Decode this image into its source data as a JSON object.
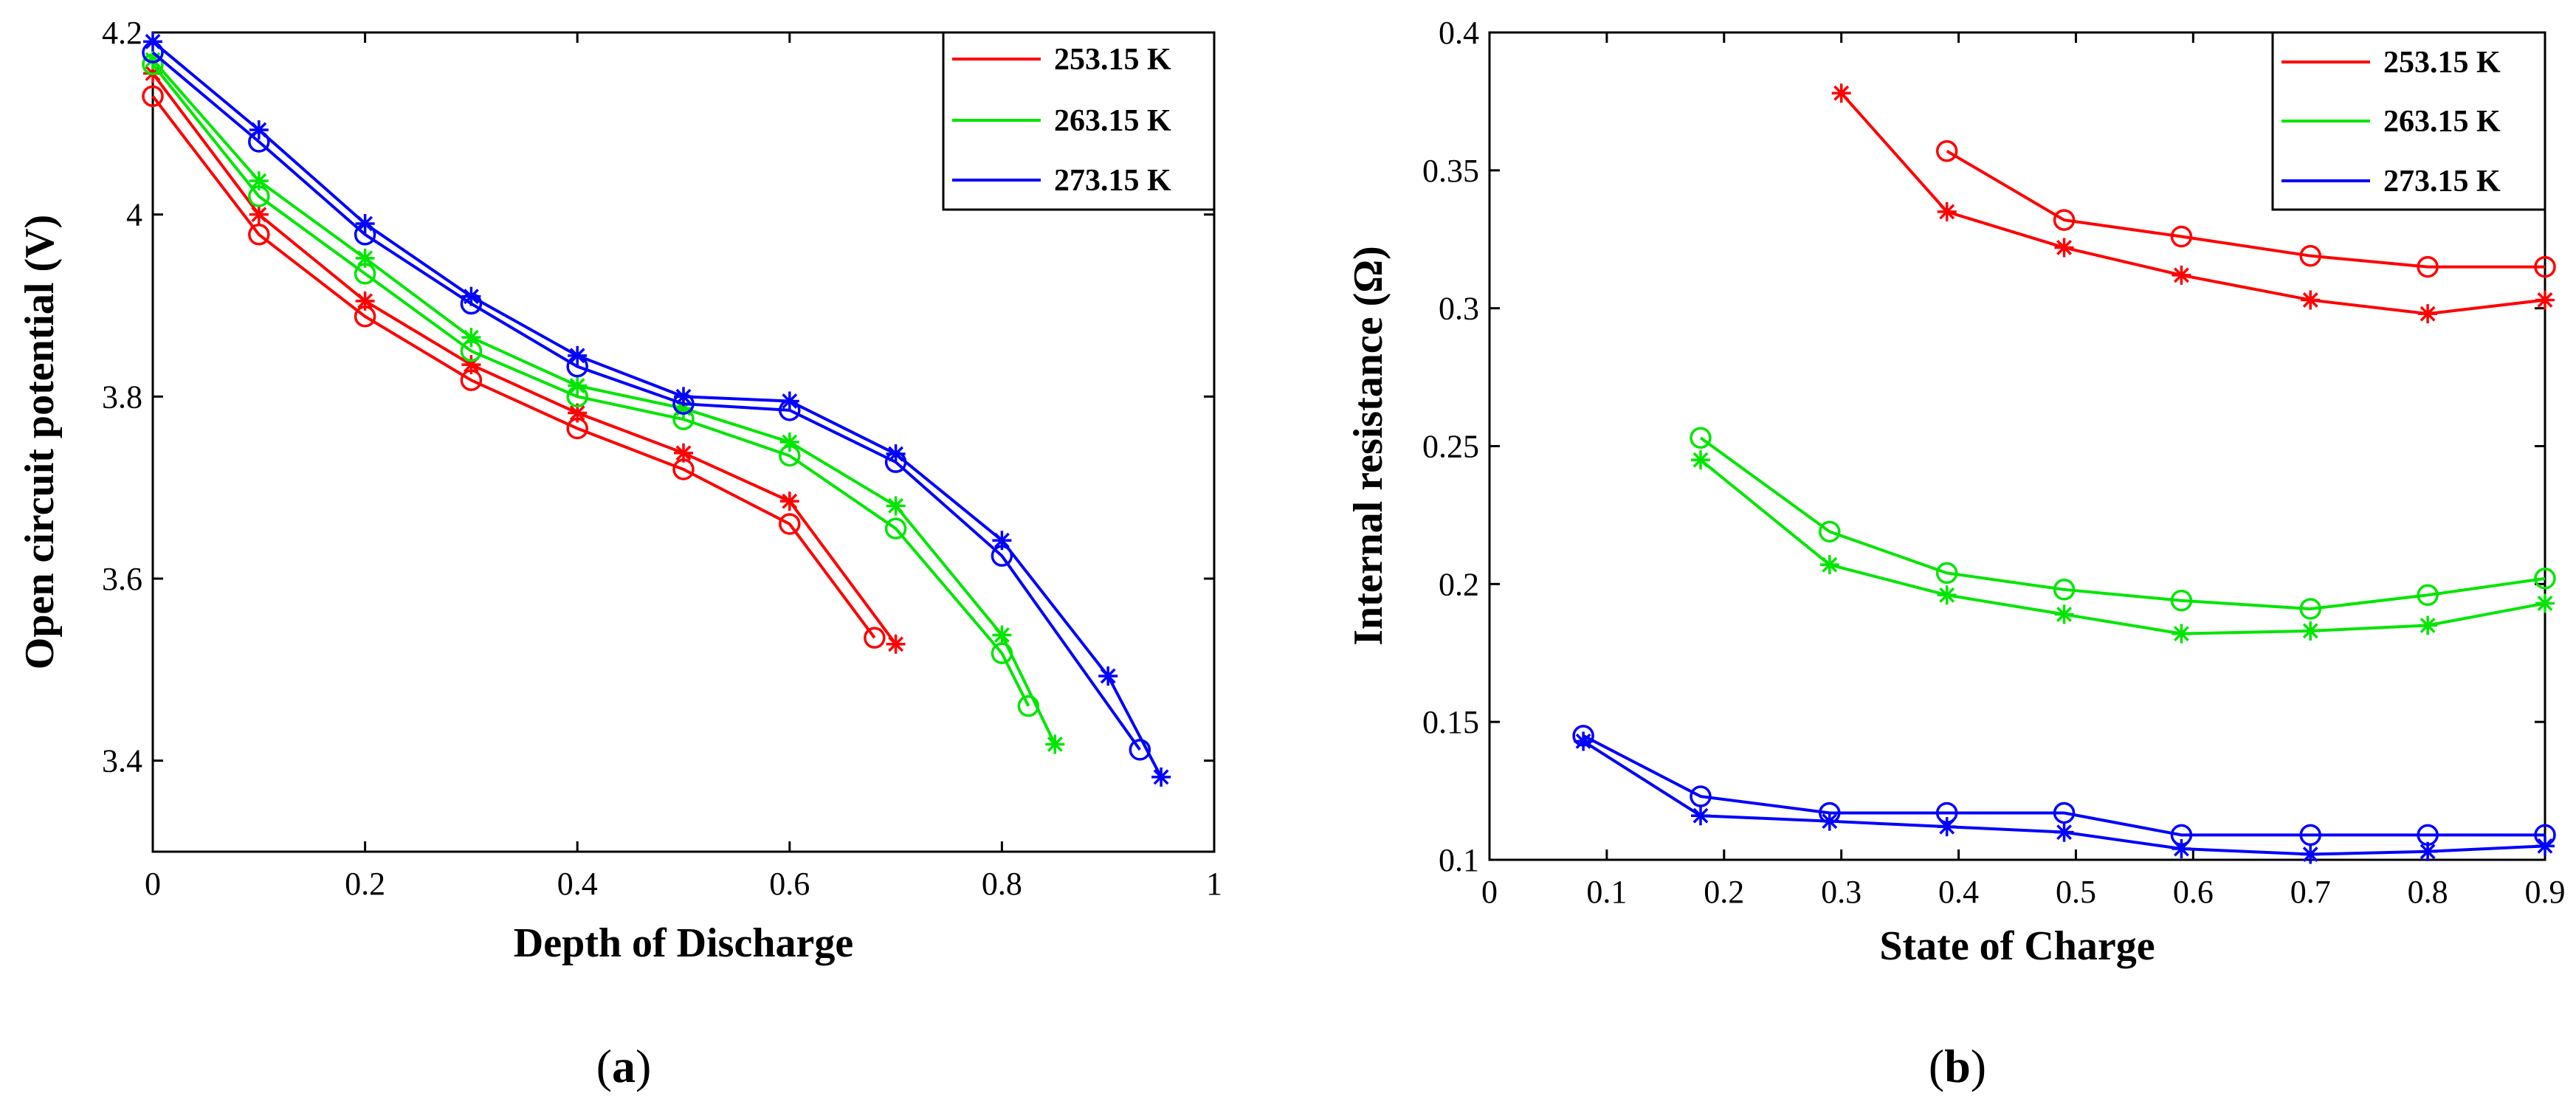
{
  "chart_data": [
    {
      "type": "line",
      "panel_label": "a",
      "xlabel": "Depth of Discharge",
      "ylabel": "Open circuit potential (V)",
      "xlim": [
        0,
        1
      ],
      "ylim": [
        3.3,
        4.2
      ],
      "xticks": [
        "0",
        "0.2",
        "0.4",
        "0.6",
        "0.8",
        "1"
      ],
      "yticks": [
        "3.4",
        "3.6",
        "3.8",
        "4",
        "4.2"
      ],
      "legend_position": "top-right",
      "series": [
        {
          "name": "253.15 K",
          "color": "#ff0000",
          "star_x": [
            0,
            0.1,
            0.2,
            0.3,
            0.4,
            0.5,
            0.6,
            0.7
          ],
          "star_y": [
            4.155,
            4.0,
            3.905,
            3.835,
            3.782,
            3.738,
            3.685,
            3.528
          ],
          "circle_x": [
            0,
            0.1,
            0.2,
            0.3,
            0.4,
            0.5,
            0.6,
            0.68
          ],
          "circle_y": [
            4.13,
            3.978,
            3.888,
            3.818,
            3.765,
            3.72,
            3.66,
            3.535
          ]
        },
        {
          "name": "263.15 K",
          "color": "#00e600",
          "star_x": [
            0,
            0.1,
            0.2,
            0.3,
            0.4,
            0.5,
            0.6,
            0.7,
            0.8,
            0.85
          ],
          "star_y": [
            4.17,
            4.037,
            3.952,
            3.865,
            3.812,
            3.787,
            3.75,
            3.68,
            3.538,
            3.418
          ],
          "circle_x": [
            0,
            0.1,
            0.2,
            0.3,
            0.4,
            0.5,
            0.6,
            0.7,
            0.8,
            0.825
          ],
          "circle_y": [
            4.165,
            4.02,
            3.935,
            3.85,
            3.8,
            3.775,
            3.735,
            3.655,
            3.518,
            3.46
          ]
        },
        {
          "name": "273.15 K",
          "color": "#0000ff",
          "star_x": [
            0,
            0.1,
            0.2,
            0.3,
            0.4,
            0.5,
            0.6,
            0.7,
            0.8,
            0.9,
            0.95
          ],
          "star_y": [
            4.19,
            4.093,
            3.99,
            3.91,
            3.845,
            3.8,
            3.795,
            3.737,
            3.642,
            3.493,
            3.382
          ],
          "circle_x": [
            0,
            0.1,
            0.2,
            0.3,
            0.4,
            0.5,
            0.6,
            0.7,
            0.8,
            0.93
          ],
          "circle_y": [
            4.178,
            4.08,
            3.978,
            3.902,
            3.833,
            3.792,
            3.785,
            3.728,
            3.625,
            3.412
          ]
        }
      ]
    },
    {
      "type": "line",
      "panel_label": "b",
      "xlabel": "State of Charge",
      "ylabel": "Internal resistance (Ω)",
      "xlim": [
        0,
        0.9
      ],
      "ylim": [
        0.1,
        0.4
      ],
      "xticks": [
        "0",
        "0.1",
        "0.2",
        "0.3",
        "0.4",
        "0.5",
        "0.6",
        "0.7",
        "0.8",
        "0.9"
      ],
      "yticks": [
        "0.1",
        "0.15",
        "0.2",
        "0.25",
        "0.3",
        "0.35",
        "0.4"
      ],
      "legend_position": "top-right",
      "series": [
        {
          "name": "253.15 K",
          "color": "#ff0000",
          "star_x": [
            0.3,
            0.39,
            0.49,
            0.59,
            0.7,
            0.8,
            0.9
          ],
          "star_y": [
            0.378,
            0.335,
            0.322,
            0.312,
            0.303,
            0.298,
            0.303
          ],
          "circle_x": [
            0.39,
            0.49,
            0.59,
            0.7,
            0.8,
            0.9
          ],
          "circle_y": [
            0.357,
            0.332,
            0.326,
            0.319,
            0.315,
            0.315
          ]
        },
        {
          "name": "263.15 K",
          "color": "#00e600",
          "star_x": [
            0.18,
            0.29,
            0.39,
            0.49,
            0.59,
            0.7,
            0.8,
            0.9
          ],
          "star_y": [
            0.245,
            0.207,
            0.196,
            0.189,
            0.182,
            0.183,
            0.185,
            0.193
          ],
          "circle_x": [
            0.18,
            0.29,
            0.39,
            0.49,
            0.59,
            0.7,
            0.8,
            0.9
          ],
          "circle_y": [
            0.253,
            0.219,
            0.204,
            0.198,
            0.194,
            0.191,
            0.196,
            0.202
          ]
        },
        {
          "name": "273.15 K",
          "color": "#0000ff",
          "star_x": [
            0.08,
            0.18,
            0.29,
            0.39,
            0.49,
            0.59,
            0.7,
            0.8,
            0.9
          ],
          "star_y": [
            0.143,
            0.116,
            0.114,
            0.112,
            0.11,
            0.104,
            0.102,
            0.103,
            0.105
          ],
          "circle_x": [
            0.08,
            0.18,
            0.29,
            0.39,
            0.49,
            0.59,
            0.7,
            0.8,
            0.9
          ],
          "circle_y": [
            0.145,
            0.123,
            0.117,
            0.117,
            0.117,
            0.109,
            0.109,
            0.109,
            0.109
          ]
        }
      ]
    }
  ]
}
